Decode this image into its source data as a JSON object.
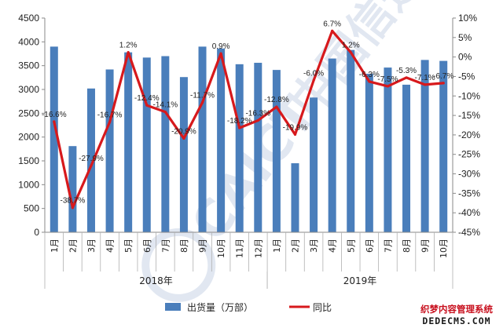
{
  "chart_data": {
    "type": "bar",
    "categories": [
      "1月",
      "2月",
      "3月",
      "4月",
      "5月",
      "6月",
      "7月",
      "8月",
      "9月",
      "10月",
      "11月",
      "12月",
      "1月",
      "2月",
      "3月",
      "4月",
      "5月",
      "6月",
      "7月",
      "8月",
      "9月",
      "10月"
    ],
    "groups": [
      {
        "label": "2018年",
        "count": 12
      },
      {
        "label": "2019年",
        "count": 10
      }
    ],
    "series": [
      {
        "name": "出货量（万部）",
        "type": "bar",
        "axis": "left",
        "color": "#4a7ebb",
        "values": [
          3900,
          1810,
          3020,
          3420,
          3780,
          3670,
          3700,
          3260,
          3900,
          3860,
          3530,
          3560,
          3410,
          1450,
          2830,
          3650,
          3830,
          3330,
          3460,
          3100,
          3620,
          3600
        ]
      },
      {
        "name": "同比",
        "type": "line",
        "axis": "right",
        "color": "#d7191c",
        "values": [
          -16.6,
          -38.7,
          -27.9,
          -16.7,
          1.2,
          -12.4,
          -14.1,
          -20.9,
          -11.7,
          0.9,
          -18.2,
          -16.3,
          -12.8,
          -19.9,
          -6.0,
          6.7,
          1.2,
          -6.3,
          -7.5,
          -5.3,
          -7.1,
          -6.7
        ],
        "labels": [
          "-16.6%",
          "-38.7%",
          "-27.9%",
          "-16.7%",
          "1.2%",
          "-12.4%",
          "-14.1%",
          "-20.9%",
          "-11.7%",
          "0.9%",
          "-18.2%",
          "-16.3%",
          "-12.8%",
          "-19.9%",
          "-6.0%",
          "6.7%",
          "1.2%",
          "-6.3%",
          "-7.5%",
          "-5.3%",
          "-7.1%",
          "-6.7%"
        ]
      }
    ],
    "y_left": {
      "min": 0,
      "max": 4500,
      "ticks": [
        "0",
        "500",
        "1000",
        "1500",
        "2000",
        "2500",
        "3000",
        "3500",
        "4000",
        "4500"
      ]
    },
    "y_right": {
      "min": -45,
      "max": 10,
      "ticks": [
        "10%",
        "5%",
        "0%",
        "-5%",
        "-10%",
        "-15%",
        "-20%",
        "-25%",
        "-30%",
        "-35%",
        "-40%",
        "-45%"
      ]
    },
    "legend": {
      "position": "bottom",
      "items": [
        {
          "label": "出货量（万部）",
          "kind": "bar",
          "color": "#4a7ebb"
        },
        {
          "label": "同比",
          "kind": "line",
          "color": "#d7191c"
        }
      ]
    },
    "grid": false,
    "watermark": {
      "brand": "CAICT",
      "cn": "中国信通院"
    },
    "site_stamp": {
      "line1": "织梦内容管理系统",
      "line2": "DEDECMS.COM"
    }
  }
}
